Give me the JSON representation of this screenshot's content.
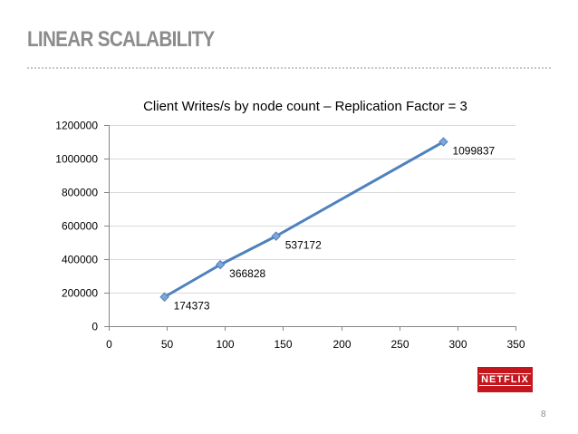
{
  "slide": {
    "title": "LINEAR SCALABILITY",
    "page_number": "8",
    "logo_text": "NETFLIX"
  },
  "colors": {
    "series_line": "#4f81bd",
    "marker": "#7fa6d8",
    "grid": "#d9d9d9",
    "axis": "#868686",
    "logo_bg": "#c4161c",
    "title": "#8c8c8c"
  },
  "chart_data": {
    "type": "scatter",
    "title": "Client Writes/s by node count – Replication Factor = 3",
    "xlabel": "",
    "ylabel": "",
    "xlim": [
      0,
      350
    ],
    "ylim": [
      0,
      1200000
    ],
    "x_ticks": [
      0,
      50,
      100,
      150,
      200,
      250,
      300,
      350
    ],
    "y_ticks": [
      0,
      200000,
      400000,
      600000,
      800000,
      1000000,
      1200000
    ],
    "grid": "horizontal",
    "legend": "none",
    "series": [
      {
        "x": [
          48,
          96,
          144,
          288
        ],
        "y": [
          174373,
          366828,
          537172,
          1099837
        ],
        "labels": [
          "174373",
          "366828",
          "537172",
          "1099837"
        ],
        "line": true,
        "marker": "diamond"
      }
    ]
  }
}
